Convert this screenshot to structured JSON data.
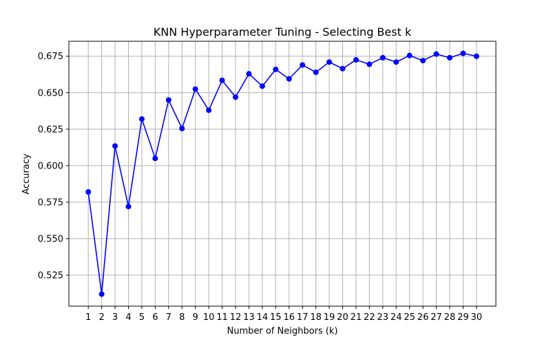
{
  "chart_data": {
    "type": "line",
    "title": "KNN Hyperparameter Tuning - Selecting Best k",
    "xlabel": "Number of Neighbors (k)",
    "ylabel": "Accuracy",
    "x": [
      1,
      2,
      3,
      4,
      5,
      6,
      7,
      8,
      9,
      10,
      11,
      12,
      13,
      14,
      15,
      16,
      17,
      18,
      19,
      20,
      21,
      22,
      23,
      24,
      25,
      26,
      27,
      28,
      29,
      30
    ],
    "series": [
      {
        "values": [
          0.582,
          0.512,
          0.6135,
          0.572,
          0.632,
          0.605,
          0.645,
          0.6255,
          0.6525,
          0.638,
          0.6585,
          0.647,
          0.663,
          0.6545,
          0.666,
          0.6595,
          0.669,
          0.664,
          0.671,
          0.6665,
          0.6725,
          0.6695,
          0.674,
          0.671,
          0.6755,
          0.672,
          0.6765,
          0.674,
          0.677,
          0.675
        ],
        "color": "#0000ff",
        "marker": "circle"
      }
    ],
    "xticks": [
      "1",
      "2",
      "3",
      "4",
      "5",
      "6",
      "7",
      "8",
      "9",
      "10",
      "11",
      "12",
      "13",
      "14",
      "15",
      "16",
      "17",
      "18",
      "19",
      "20",
      "21",
      "22",
      "23",
      "24",
      "25",
      "26",
      "27",
      "28",
      "29",
      "30"
    ],
    "yticks": [
      "0.525",
      "0.550",
      "0.575",
      "0.600",
      "0.625",
      "0.650",
      "0.675"
    ],
    "xlim": [
      -0.45,
      31.45
    ],
    "ylim": [
      0.50375,
      0.68525
    ],
    "grid": true,
    "legend": "none"
  }
}
